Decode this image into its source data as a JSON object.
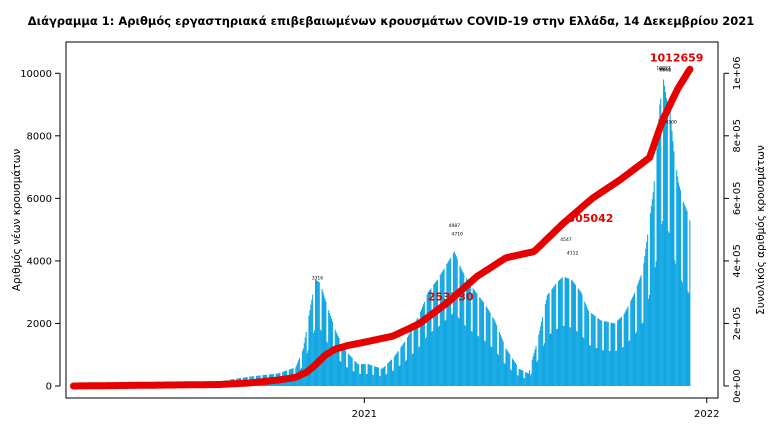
{
  "chart_data": {
    "type": "bar",
    "title": "Διάγραμμα 1: Αριθμός εργαστηριακά επιβεβαιωμένων κρουσμάτων COVID-19 στην Ελλάδα, 14 Δεκεμβρίου 2021",
    "ylabel": "Αριθμός νέων κρουσμάτων",
    "ylabel_right": "Συνολικός αριθμός κρουσμάτων",
    "ylim": [
      0,
      11000
    ],
    "ylim_right": [
      0,
      1100000
    ],
    "y_ticks": [
      "0",
      "2000",
      "4000",
      "6000",
      "8000",
      "10000"
    ],
    "y_ticks_right": [
      "0e+00",
      "2e+05",
      "4e+05",
      "6e+05",
      "8e+05",
      "1e+06"
    ],
    "x_range": [
      "2020-02-26",
      "2021-12-14"
    ],
    "x_ticks": [
      {
        "date": "2021-01-01",
        "label": "2021"
      },
      {
        "date": "2022-01-01",
        "label": "2022"
      }
    ],
    "bar_color": "#12a7e2",
    "cumulative_color": "#e60000",
    "daily_cases_envelope": [
      [
        "2020-02-26",
        0
      ],
      [
        "2020-06-01",
        5
      ],
      [
        "2020-07-15",
        30
      ],
      [
        "2020-08-10",
        200
      ],
      [
        "2020-09-01",
        300
      ],
      [
        "2020-10-01",
        400
      ],
      [
        "2020-10-20",
        600
      ],
      [
        "2020-10-28",
        1200
      ],
      [
        "2020-11-05",
        2600
      ],
      [
        "2020-11-10",
        3400
      ],
      [
        "2020-11-15",
        3300
      ],
      [
        "2020-11-22",
        2600
      ],
      [
        "2020-12-01",
        1800
      ],
      [
        "2020-12-10",
        1200
      ],
      [
        "2020-12-25",
        700
      ],
      [
        "2021-01-05",
        700
      ],
      [
        "2021-01-20",
        550
      ],
      [
        "2021-02-01",
        900
      ],
      [
        "2021-02-15",
        1500
      ],
      [
        "2021-03-01",
        2300
      ],
      [
        "2021-03-10",
        3000
      ],
      [
        "2021-03-20",
        3400
      ],
      [
        "2021-03-30",
        3900
      ],
      [
        "2021-04-07",
        4300
      ],
      [
        "2021-04-15",
        3700
      ],
      [
        "2021-04-25",
        3200
      ],
      [
        "2021-05-10",
        2600
      ],
      [
        "2021-05-20",
        2100
      ],
      [
        "2021-06-01",
        1200
      ],
      [
        "2021-06-15",
        550
      ],
      [
        "2021-06-25",
        400
      ],
      [
        "2021-07-05",
        1500
      ],
      [
        "2021-07-15",
        2900
      ],
      [
        "2021-07-25",
        3300
      ],
      [
        "2021-08-01",
        3500
      ],
      [
        "2021-08-10",
        3400
      ],
      [
        "2021-08-20",
        3000
      ],
      [
        "2021-08-28",
        2400
      ],
      [
        "2021-09-10",
        2100
      ],
      [
        "2021-09-25",
        2000
      ],
      [
        "2021-10-05",
        2300
      ],
      [
        "2021-10-15",
        2900
      ],
      [
        "2021-10-25",
        3700
      ],
      [
        "2021-11-01",
        5300
      ],
      [
        "2021-11-05",
        6200
      ],
      [
        "2021-11-09",
        7600
      ],
      [
        "2021-11-12",
        9000
      ],
      [
        "2021-11-16",
        9800
      ],
      [
        "2021-11-19",
        9200
      ],
      [
        "2021-11-23",
        8800
      ],
      [
        "2021-11-27",
        7500
      ],
      [
        "2021-12-02",
        6500
      ],
      [
        "2021-12-07",
        5900
      ],
      [
        "2021-12-11",
        5600
      ],
      [
        "2021-12-14",
        5300
      ]
    ],
    "labelled_peaks": [
      {
        "date": "2020-11-12",
        "value": 3316
      },
      {
        "date": "2021-04-07",
        "value": 4987
      },
      {
        "date": "2021-04-10",
        "value": 4710
      },
      {
        "date": "2021-08-04",
        "value": 4547
      },
      {
        "date": "2021-08-11",
        "value": 4112
      },
      {
        "date": "2021-11-16",
        "value": 10027
      },
      {
        "date": "2021-11-17",
        "value": 9974
      },
      {
        "date": "2021-11-18",
        "value": 9968
      },
      {
        "date": "2021-11-24",
        "value": 8300
      }
    ],
    "cumulative_cases": [
      [
        "2020-02-26",
        0
      ],
      [
        "2020-06-01",
        3000
      ],
      [
        "2020-08-01",
        4800
      ],
      [
        "2020-09-01",
        10000
      ],
      [
        "2020-10-01",
        19000
      ],
      [
        "2020-10-20",
        28000
      ],
      [
        "2020-11-01",
        45000
      ],
      [
        "2020-11-10",
        68000
      ],
      [
        "2020-11-20",
        98000
      ],
      [
        "2020-12-01",
        118000
      ],
      [
        "2020-12-15",
        130000
      ],
      [
        "2021-01-01",
        140000
      ],
      [
        "2021-02-01",
        160000
      ],
      [
        "2021-03-01",
        200000
      ],
      [
        "2021-04-01",
        270000
      ],
      [
        "2021-05-01",
        350000
      ],
      [
        "2021-06-01",
        410000
      ],
      [
        "2021-07-01",
        430000
      ],
      [
        "2021-08-01",
        520000
      ],
      [
        "2021-09-01",
        600000
      ],
      [
        "2021-10-01",
        660000
      ],
      [
        "2021-11-01",
        730000
      ],
      [
        "2021-11-15",
        850000
      ],
      [
        "2021-12-01",
        950000
      ],
      [
        "2021-12-14",
        1012659
      ]
    ],
    "cumulative_annotations": [
      {
        "date": "2021-04-02",
        "value": 253730,
        "label": "253730"
      },
      {
        "date": "2021-08-29",
        "value": 505042,
        "label": "505042"
      },
      {
        "date": "2021-12-14",
        "value": 1012659,
        "label": "1012659"
      }
    ]
  }
}
